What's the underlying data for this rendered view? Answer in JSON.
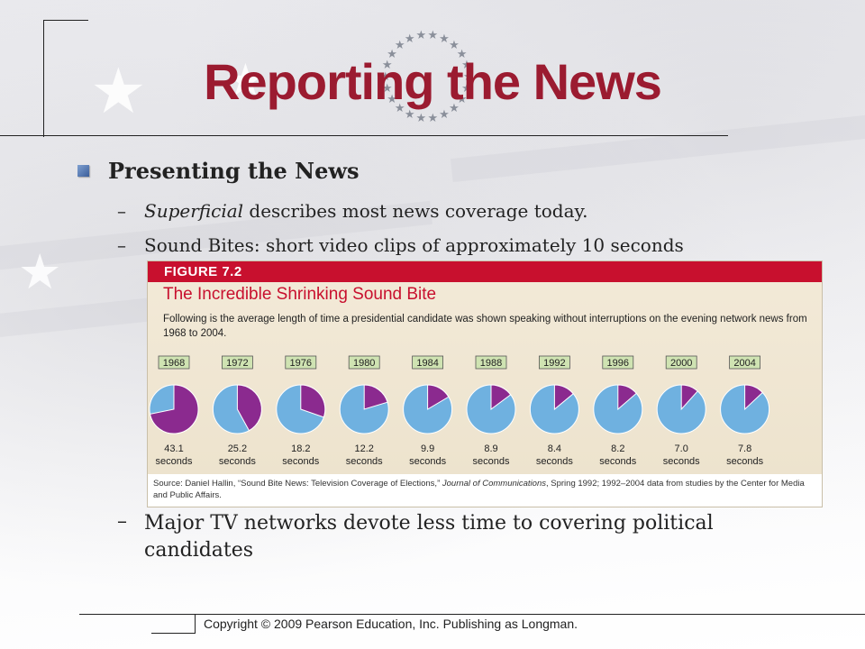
{
  "slide": {
    "title": "Reporting the News",
    "bullet": "Presenting the News",
    "sub1_italic": "Superficial",
    "sub1_rest": " describes most news coverage today.",
    "sub2": "Sound Bites: short video clips of approximately 10 seconds",
    "sub3": "Major TV networks devote less time to covering political candidates",
    "dash": "–",
    "footer": "Copyright © 2009 Pearson Education, Inc. Publishing as Longman."
  },
  "figure": {
    "label": "FIGURE 7.2",
    "title": "The Incredible Shrinking Sound Bite",
    "description": "Following is the average length of time a presidential candidate was shown speaking without interruptions on the evening network news from 1968 to 2004.",
    "source_prefix": "Source: Daniel Hallin, “Sound Bite News: Television Coverage of Elections,” ",
    "source_journal": "Journal of Communications",
    "source_suffix": ", Spring 1992; 1992–2004 data from studies by the Center for Media and Public Affairs."
  },
  "chart_data": {
    "type": "pie",
    "unit_label": "seconds",
    "max_seconds": 60,
    "colors": {
      "sound_bite": "#8b2a8f",
      "remainder": "#6fb1e0",
      "year_box": "#cfe3b2"
    },
    "categories": [
      "1968",
      "1972",
      "1976",
      "1980",
      "1984",
      "1988",
      "1992",
      "1996",
      "2000",
      "2004"
    ],
    "values": [
      43.1,
      25.2,
      18.2,
      12.2,
      9.9,
      8.9,
      8.4,
      8.2,
      7.0,
      7.8
    ],
    "value_labels": [
      "43.1",
      "25.2",
      "18.2",
      "12.2",
      "9.9",
      "8.9",
      "8.4",
      "8.2",
      "7.0",
      "7.8"
    ]
  }
}
